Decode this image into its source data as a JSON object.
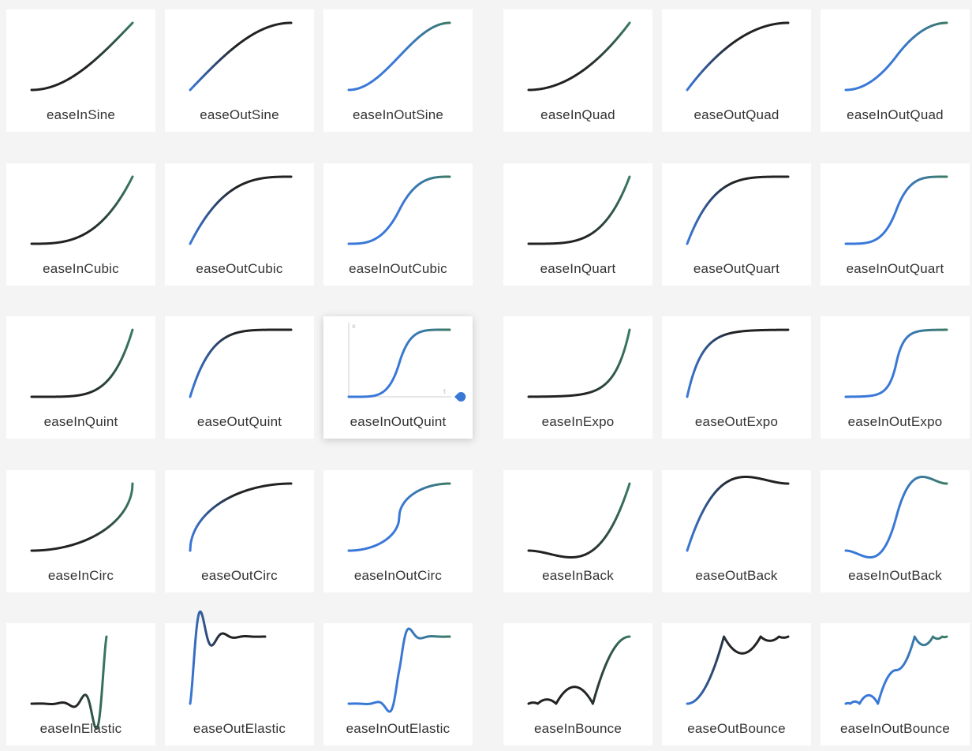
{
  "colors": {
    "background": "#f4f4f4",
    "card": "#ffffff",
    "curve_start": "#3a78d8",
    "curve_mid": "#222222",
    "curve_end": "#3a7a62",
    "label": "#333333",
    "axis": "#dddddd",
    "handle": "#3a78d8"
  },
  "hovered": {
    "curve": "easeInOutQuint",
    "axis_y_label": "x",
    "axis_x_label": "t",
    "handle_icon": "drag-handle-icon"
  },
  "rows": [
    {
      "left": [
        "easeInSine",
        "easeOutSine",
        "easeInOutSine"
      ],
      "right": [
        "easeInQuad",
        "easeOutQuad",
        "easeInOutQuad"
      ]
    },
    {
      "left": [
        "easeInCubic",
        "easeOutCubic",
        "easeInOutCubic"
      ],
      "right": [
        "easeInQuart",
        "easeOutQuart",
        "easeInOutQuart"
      ]
    },
    {
      "left": [
        "easeInQuint",
        "easeOutQuint",
        "easeInOutQuint"
      ],
      "right": [
        "easeInExpo",
        "easeOutExpo",
        "easeInOutExpo"
      ]
    },
    {
      "left": [
        "easeInCirc",
        "easeOutCirc",
        "easeInOutCirc"
      ],
      "right": [
        "easeInBack",
        "easeOutBack",
        "easeInOutBack"
      ]
    },
    {
      "left": [
        "easeInElastic",
        "easeOutElastic",
        "easeInOutElastic"
      ],
      "right": [
        "easeInBounce",
        "easeOutBounce",
        "easeInOutBounce"
      ]
    }
  ]
}
